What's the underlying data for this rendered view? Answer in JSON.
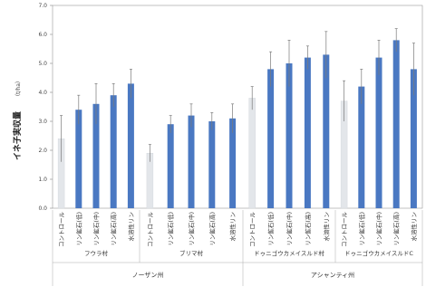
{
  "chart_data": {
    "type": "bar",
    "title": "",
    "ylabel": "イネ子実収量",
    "ylabel_unit": "（t/ha）",
    "ylim": [
      0,
      7
    ],
    "yticks": [
      "0.0",
      "1.0",
      "2.0",
      "3.0",
      "4.0",
      "5.0",
      "6.0",
      "7.0"
    ],
    "grid": false,
    "bar_color": "#4a78c2",
    "control_color": "#e3e6ea",
    "regions": [
      {
        "label": "ノーザン州",
        "groups": [
          0,
          1
        ]
      },
      {
        "label": "アシャンティ州",
        "groups": [
          2,
          3
        ]
      }
    ],
    "groups": [
      {
        "label": "フウラ村",
        "categories": [
          "コントロール",
          "リン鉱石(低)",
          "リン鉱石(中)",
          "リン鉱石(高)",
          "水溶性リン"
        ],
        "values": [
          2.4,
          3.4,
          3.6,
          3.9,
          4.3
        ],
        "errors": [
          0.8,
          0.5,
          0.7,
          0.4,
          0.5
        ]
      },
      {
        "label": "ブリマ村",
        "categories": [
          "コントロール",
          "リン鉱石(低)",
          "リン鉱石(中)",
          "リン鉱石(高)",
          "水溶性リン"
        ],
        "values": [
          1.9,
          2.9,
          3.2,
          3.0,
          3.1
        ],
        "errors": [
          0.3,
          0.3,
          0.4,
          0.3,
          0.5
        ]
      },
      {
        "label": "ドゥニゴウカメイスルド村",
        "categories": [
          "コントロール",
          "リン鉱石(低)",
          "リン鉱石(中)",
          "リン鉱石(高)",
          "水溶性リン"
        ],
        "values": [
          3.8,
          4.8,
          5.0,
          5.2,
          5.3
        ],
        "errors": [
          0.4,
          0.6,
          0.8,
          0.4,
          0.8
        ]
      },
      {
        "label": "ドゥニゴウカメイスルドC",
        "categories": [
          "コントロール",
          "リン鉱石(低)",
          "リン鉱石(中)",
          "リン鉱石(高)",
          "水溶性リン"
        ],
        "values": [
          3.7,
          4.2,
          5.2,
          5.8,
          4.8
        ],
        "errors": [
          0.7,
          0.6,
          0.6,
          0.4,
          0.9
        ]
      }
    ]
  }
}
